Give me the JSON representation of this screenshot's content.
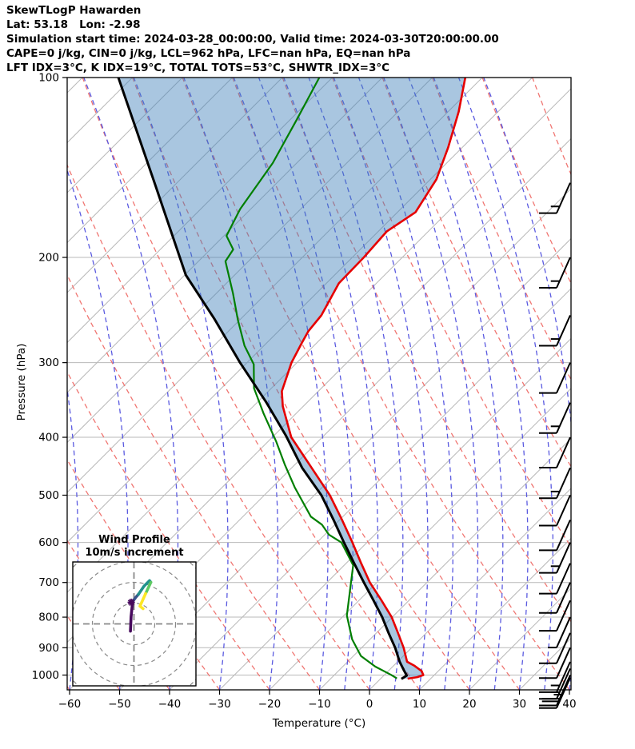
{
  "header": {
    "title": "SkewTLogP Hawarden",
    "location": "Lat: 53.18   Lon: -2.98",
    "times": "Simulation start time: 2024-03-28_00:00:00, Valid time: 2024-03-30T20:00:00.00",
    "cape_line": "CAPE=0 j/kg, CIN=0 j/kg, LCL=962 hPa, LFC=nan hPa, EQ=nan hPa",
    "index_line": "LFT IDX=3°C, K IDX=19°C, TOTAL TOTS=53°C, SHWTR_IDX=3°C"
  },
  "chart_data": {
    "type": "line",
    "title": "SkewTLogP Hawarden",
    "xlabel": "Temperature (°C)",
    "ylabel": "Pressure (hPa)",
    "skew_deg": 45,
    "xlim_at_surface": [
      -60,
      40
    ],
    "ylim": [
      1052,
      100
    ],
    "x_ticks": [
      -60,
      -50,
      -40,
      -30,
      -20,
      -10,
      0,
      10,
      20,
      30,
      40
    ],
    "y_ticks": [
      100,
      200,
      300,
      400,
      500,
      600,
      700,
      800,
      900,
      1000
    ],
    "grid": true,
    "series": [
      {
        "name": "temperature",
        "color": "#e60000",
        "points": [
          [
            100,
            -103.4
          ],
          [
            114,
            -97.9
          ],
          [
            131,
            -92.8
          ],
          [
            148,
            -88.8
          ],
          [
            168,
            -86.4
          ],
          [
            181,
            -88.3
          ],
          [
            200,
            -87.7
          ],
          [
            221,
            -87.5
          ],
          [
            250,
            -84.6
          ],
          [
            266,
            -84.0
          ],
          [
            279,
            -82.9
          ],
          [
            300,
            -81.1
          ],
          [
            335,
            -77.3
          ],
          [
            355,
            -74.1
          ],
          [
            400,
            -66.2
          ],
          [
            450,
            -56.0
          ],
          [
            500,
            -46.9
          ],
          [
            550,
            -39.5
          ],
          [
            600,
            -32.9
          ],
          [
            650,
            -27.0
          ],
          [
            700,
            -21.4
          ],
          [
            750,
            -15.5
          ],
          [
            800,
            -10.1
          ],
          [
            850,
            -5.7
          ],
          [
            900,
            -1.6
          ],
          [
            950,
            1.9
          ],
          [
            965,
            4.2
          ],
          [
            985,
            6.7
          ],
          [
            1000,
            7.8
          ],
          [
            1008,
            7.0
          ],
          [
            1014,
            5.4
          ]
        ]
      },
      {
        "name": "dewpoint",
        "color": "#007f00",
        "points": [
          [
            100,
            -132.6
          ],
          [
            118,
            -128.6
          ],
          [
            139,
            -124.8
          ],
          [
            166,
            -122.1
          ],
          [
            184,
            -119.5
          ],
          [
            194,
            -115.4
          ],
          [
            203,
            -114.6
          ],
          [
            230,
            -106.6
          ],
          [
            254,
            -100.5
          ],
          [
            281,
            -93.9
          ],
          [
            302,
            -88.3
          ],
          [
            331,
            -83.5
          ],
          [
            365,
            -76.5
          ],
          [
            407,
            -68.3
          ],
          [
            444,
            -62.1
          ],
          [
            485,
            -55.5
          ],
          [
            543,
            -46.4
          ],
          [
            560,
            -42.6
          ],
          [
            582,
            -39.2
          ],
          [
            600,
            -35.1
          ],
          [
            655,
            -28.2
          ],
          [
            728,
            -23.4
          ],
          [
            795,
            -19.4
          ],
          [
            871,
            -13.6
          ],
          [
            929,
            -8.5
          ],
          [
            968,
            -3.5
          ],
          [
            999,
            1.3
          ],
          [
            1013,
            3.2
          ]
        ]
      },
      {
        "name": "parcel",
        "color": "#000000",
        "points": [
          [
            100,
            -172.8
          ],
          [
            150,
            -144.5
          ],
          [
            214,
            -119.8
          ],
          [
            254,
            -105.1
          ],
          [
            300,
            -91.4
          ],
          [
            350,
            -78.1
          ],
          [
            397,
            -67.7
          ],
          [
            450,
            -57.9
          ],
          [
            500,
            -48.6
          ],
          [
            550,
            -41.2
          ],
          [
            600,
            -34.6
          ],
          [
            650,
            -28.4
          ],
          [
            700,
            -22.6
          ],
          [
            750,
            -17.1
          ],
          [
            800,
            -12.0
          ],
          [
            850,
            -7.6
          ],
          [
            900,
            -3.3
          ],
          [
            950,
            0.4
          ],
          [
            981,
            2.9
          ],
          [
            1002,
            4.6
          ],
          [
            1015,
            4.2
          ]
        ]
      }
    ],
    "shaded_region": {
      "between": [
        "parcel",
        "temperature"
      ],
      "color": "rgba(64,129,187,0.45)"
    },
    "background": {
      "isotherm_start": -180,
      "isotherm_end": 40,
      "isotherm_step": 10,
      "dry_adiabats": [
        -60,
        -50,
        -40,
        -30,
        -20,
        -10,
        0,
        10,
        20,
        30,
        40,
        50,
        60,
        70,
        80,
        90,
        100,
        110
      ],
      "moist_adiabats": [
        -60,
        -50,
        -40,
        -30,
        -20,
        -10,
        -5,
        0,
        5,
        10,
        15,
        20,
        25,
        30,
        35,
        40
      ],
      "colors": {
        "isotherm": "#b9b9b9",
        "pressure_grid": "#b9b9b9",
        "dry_adiabat": "#f07672",
        "moist_adiabat": "#5a5ae0"
      }
    },
    "wind_barbs": {
      "direction_from_deg": 205,
      "units": "m/s",
      "levels": [
        {
          "p": 150,
          "speed": 15
        },
        {
          "p": 200,
          "speed": 15
        },
        {
          "p": 250,
          "speed": 15
        },
        {
          "p": 300,
          "speed": 10
        },
        {
          "p": 350,
          "speed": 15
        },
        {
          "p": 400,
          "speed": 10
        },
        {
          "p": 450,
          "speed": 15
        },
        {
          "p": 500,
          "speed": 10
        },
        {
          "p": 550,
          "speed": 10
        },
        {
          "p": 600,
          "speed": 15
        },
        {
          "p": 650,
          "speed": 10
        },
        {
          "p": 700,
          "speed": 10
        },
        {
          "p": 750,
          "speed": 10
        },
        {
          "p": 800,
          "speed": 5
        },
        {
          "p": 850,
          "speed": 10
        },
        {
          "p": 900,
          "speed": 10
        },
        {
          "p": 950,
          "speed": 15
        },
        {
          "p": 975,
          "speed": 15
        },
        {
          "p": 1000,
          "speed": 20
        },
        {
          "p": 1010,
          "speed": 25
        }
      ]
    },
    "hodograph": {
      "title": "Wind Profile",
      "subtitle": "10m/s increment",
      "rings_m_s": [
        10,
        20,
        30,
        40
      ],
      "ring_color": "#888888",
      "segments": [
        {
          "color": "#46085c",
          "points": [
            [
              -1.7,
              -3.5
            ],
            [
              -1.4,
              3.5
            ],
            [
              -0.6,
              10.8
            ]
          ]
        },
        {
          "color": "#3a548c",
          "points": [
            [
              -0.6,
              10.8
            ],
            [
              0.8,
              12.7
            ],
            [
              2.1,
              14.2
            ]
          ]
        },
        {
          "color": "#21918c",
          "points": [
            [
              2.1,
              14.2
            ],
            [
              4.8,
              18.1
            ],
            [
              7.5,
              20.8
            ],
            [
              8.1,
              20.0
            ]
          ]
        },
        {
          "color": "#5ec962",
          "points": [
            [
              8.1,
              20.0
            ],
            [
              6.5,
              16.5
            ],
            [
              5.6,
              14.6
            ]
          ]
        },
        {
          "color": "#fde725",
          "points": [
            [
              5.6,
              14.6
            ],
            [
              2.9,
              8.5
            ],
            [
              4.4,
              7.3
            ]
          ]
        }
      ],
      "marker": {
        "u": -1.3,
        "v": 10.4,
        "color": "#46085c"
      }
    }
  }
}
